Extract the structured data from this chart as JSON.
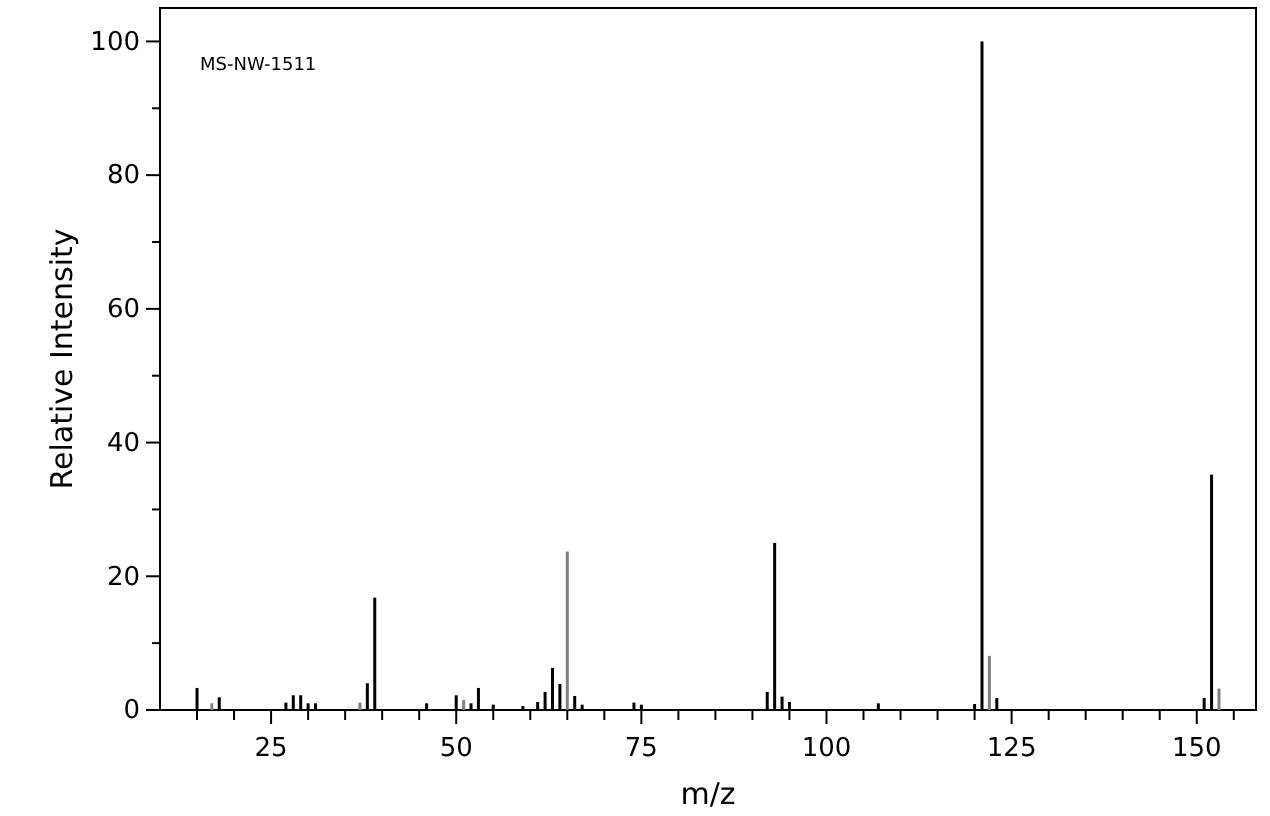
{
  "chart_data": {
    "type": "bar",
    "xlabel": "m/z",
    "ylabel": "Relative Intensity",
    "annotations": [
      "MS-NW-1511"
    ],
    "x": [
      15,
      17,
      18,
      27,
      28,
      29,
      30,
      31,
      37,
      38,
      39,
      46,
      50,
      51,
      52,
      53,
      55,
      59,
      61,
      62,
      63,
      64,
      65,
      66,
      67,
      74,
      75,
      92,
      93,
      94,
      95,
      107,
      120,
      121,
      122,
      123,
      151,
      152,
      153
    ],
    "values": [
      3.3,
      1,
      1.9,
      1.1,
      2.2,
      2.2,
      1,
      1,
      1.1,
      4,
      16.8,
      1,
      2.2,
      1.5,
      1,
      3.3,
      0.8,
      0.6,
      1.2,
      2.7,
      6.3,
      3.9,
      23.7,
      2.1,
      0.8,
      1.1,
      0.8,
      2.7,
      25,
      2,
      1.2,
      1,
      0.9,
      100,
      8.1,
      1.8,
      1.8,
      35.2,
      3.2
    ],
    "colors": [
      "#000000",
      "#808080",
      "#000000",
      "#000000",
      "#000000",
      "#000000",
      "#000000",
      "#000000",
      "#808080",
      "#000000",
      "#000000",
      "#000000",
      "#000000",
      "#808080",
      "#000000",
      "#000000",
      "#000000",
      "#000000",
      "#000000",
      "#000000",
      "#000000",
      "#000000",
      "#808080",
      "#000000",
      "#000000",
      "#000000",
      "#000000",
      "#000000",
      "#000000",
      "#000000",
      "#000000",
      "#000000",
      "#000000",
      "#000000",
      "#808080",
      "#000000",
      "#000000",
      "#000000",
      "#808080"
    ],
    "xlim": [
      10,
      158
    ],
    "xticks": [
      {
        "value": 15,
        "label": null
      },
      {
        "value": 20,
        "label": null
      },
      25,
      {
        "value": 30,
        "label": null
      },
      {
        "value": 35,
        "label": null
      },
      {
        "value": 40,
        "label": null
      },
      {
        "value": 45,
        "label": null
      },
      50,
      {
        "value": 55,
        "label": null
      },
      {
        "value": 60,
        "label": null
      },
      {
        "value": 65,
        "label": null
      },
      {
        "value": 70,
        "label": null
      },
      75,
      {
        "value": 80,
        "label": null
      },
      {
        "value": 85,
        "label": null
      },
      {
        "value": 90,
        "label": null
      },
      {
        "value": 95,
        "label": null
      },
      100,
      {
        "value": 105,
        "label": null
      },
      {
        "value": 110,
        "label": null
      },
      {
        "value": 115,
        "label": null
      },
      {
        "value": 120,
        "label": null
      },
      125,
      {
        "value": 130,
        "label": null
      },
      {
        "value": 135,
        "label": null
      },
      {
        "value": 140,
        "label": null
      },
      {
        "value": 145,
        "label": null
      },
      150,
      {
        "value": 155,
        "label": null
      }
    ],
    "ylim": [
      0,
      105
    ],
    "yticks": [
      0,
      {
        "value": 10,
        "label": null
      },
      20,
      {
        "value": 30,
        "label": null
      },
      40,
      {
        "value": 50,
        "label": null
      },
      60,
      {
        "value": 70,
        "label": null
      },
      80,
      {
        "value": 90,
        "label": null
      },
      100
    ],
    "grid": false
  }
}
